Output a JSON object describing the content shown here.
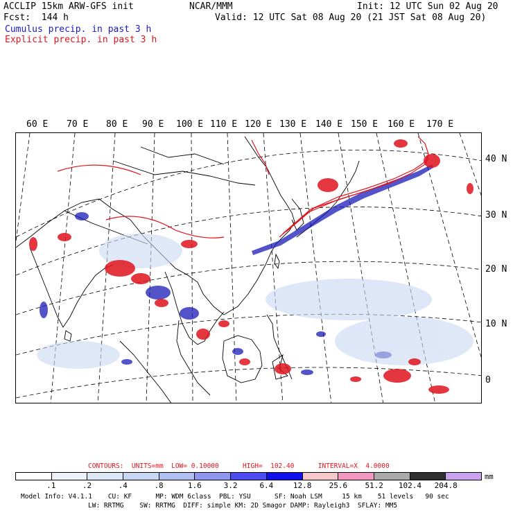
{
  "header": {
    "model_title": "ACCLIP 15km ARW-GFS init",
    "org": "NCAR/MMM",
    "init": "Init: 12 UTC Sun 02 Aug 20",
    "fcst": "Fcst:  144 h",
    "valid": "Valid: 12 UTC Sat 08 Aug 20 (21 JST Sat 08 Aug 20)",
    "legend_cumulus": "Cumulus precip. in past 3 h",
    "legend_explicit": "Explicit precip. in past 3 h"
  },
  "colors": {
    "cumulus": "#1a1ab8",
    "explicit": "#e0141e",
    "coast": "#000000"
  },
  "map": {
    "lon_labels": [
      "60 E",
      "70 E",
      "80 E",
      "90 E",
      "100 E",
      "110 E",
      "120 E",
      "130 E",
      "140 E",
      "150 E",
      "160 E",
      "170 E"
    ],
    "lat_labels": [
      "40 N",
      "30 N",
      "20 N",
      "10 N",
      "0"
    ]
  },
  "contours": {
    "text": "CONTOURS:  UNITS=mm  LOW= 0.10000      HIGH=  102.40      INTERVAL=X  4.0000"
  },
  "colorbar": {
    "ticks": [
      ".1",
      ".2",
      ".4",
      ".8",
      "1.6",
      "3.2",
      "6.4",
      "12.8",
      "25.6",
      "51.2",
      "102.4",
      "204.8"
    ],
    "unit": "mm",
    "swatches": [
      "#ffffff",
      "#eef3fb",
      "#dde8f7",
      "#c8d8f2",
      "#aebff0",
      "#8f96ee",
      "#4b4bf0",
      "#1010e8",
      "#f6c8cc",
      "#f298c0",
      "#aaaaaa",
      "#303030",
      "#c9a3ee"
    ]
  },
  "footer": {
    "line1": "Model Info: V4.1.1    CU: KF      MP: WDM 6class  PBL: YSU      SF: Noah LSM     15 km    51 levels   90 sec",
    "line2": "LW: RRTMG    SW: RRTMG  DIFF: simple KM: 2D Smagor DAMP: Rayleigh3  SFLAY: MM5"
  }
}
